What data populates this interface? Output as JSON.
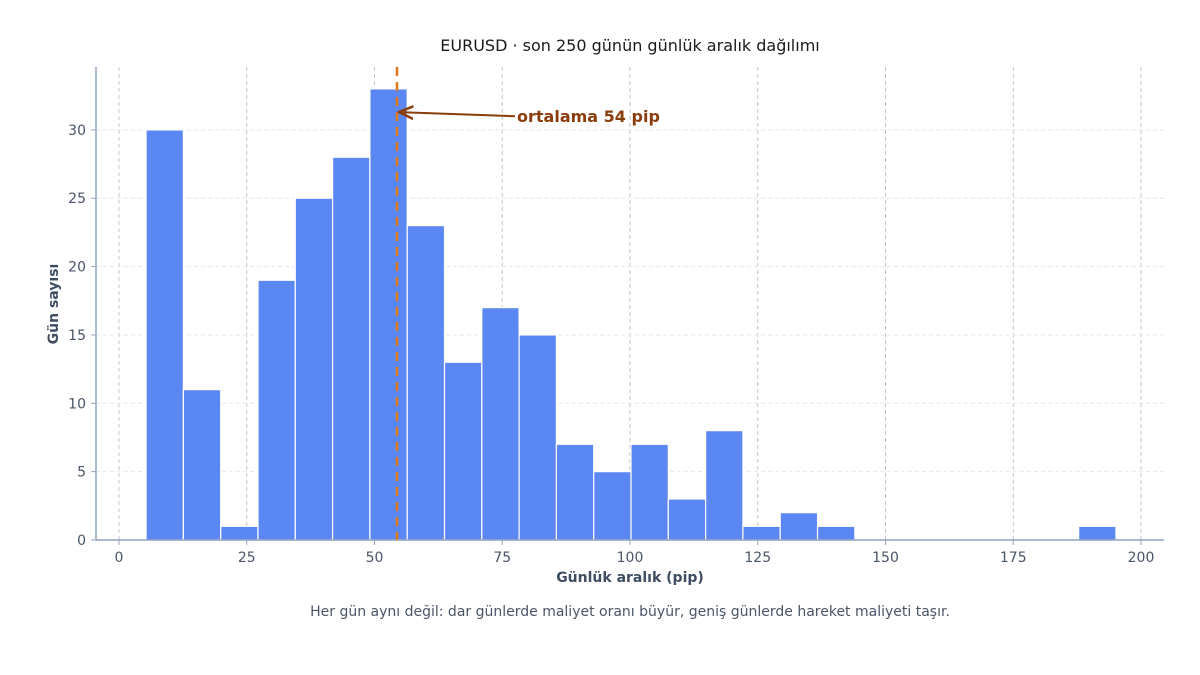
{
  "chart_data": {
    "type": "bar",
    "title": "EURUSD · son 250 günün günlük aralık dağılımı",
    "xlabel": "Günlük aralık (pip)",
    "ylabel": "Gün sayısı",
    "caption": "Her gün aynı değil: dar günlerde maliyet oranı büyür, geniş günlerde hareket maliyeti taşır.",
    "xlim": [
      -4.5,
      204.5
    ],
    "ylim": [
      0,
      34.6
    ],
    "xticks": [
      0,
      25,
      50,
      75,
      100,
      125,
      150,
      175,
      200
    ],
    "yticks": [
      0,
      5,
      10,
      15,
      20,
      25,
      30
    ],
    "bins": [
      {
        "start": 5.3,
        "end": 12.6,
        "value": 30
      },
      {
        "start": 12.6,
        "end": 19.9,
        "value": 11
      },
      {
        "start": 19.9,
        "end": 27.2,
        "value": 1
      },
      {
        "start": 27.2,
        "end": 34.5,
        "value": 19
      },
      {
        "start": 34.5,
        "end": 41.8,
        "value": 25
      },
      {
        "start": 41.8,
        "end": 49.1,
        "value": 28
      },
      {
        "start": 49.1,
        "end": 56.4,
        "value": 33
      },
      {
        "start": 56.4,
        "end": 63.7,
        "value": 23
      },
      {
        "start": 63.7,
        "end": 71.0,
        "value": 13
      },
      {
        "start": 71.0,
        "end": 78.3,
        "value": 17
      },
      {
        "start": 78.3,
        "end": 85.6,
        "value": 15
      },
      {
        "start": 85.6,
        "end": 92.9,
        "value": 7
      },
      {
        "start": 92.9,
        "end": 100.2,
        "value": 5
      },
      {
        "start": 100.2,
        "end": 107.5,
        "value": 7
      },
      {
        "start": 107.5,
        "end": 114.8,
        "value": 3
      },
      {
        "start": 114.8,
        "end": 122.1,
        "value": 8
      },
      {
        "start": 122.1,
        "end": 129.4,
        "value": 1
      },
      {
        "start": 129.4,
        "end": 136.7,
        "value": 2
      },
      {
        "start": 136.7,
        "end": 144.0,
        "value": 1
      },
      {
        "start": 187.8,
        "end": 195.1,
        "value": 1
      }
    ],
    "mean_line": {
      "value": 54.4,
      "label": "ortalama 54 pip",
      "arrow_from": [
        77.5,
        31.0
      ],
      "arrow_to": [
        54.8,
        31.3
      ]
    },
    "grid": true,
    "colors": {
      "bar": "#5b87f2",
      "bar_edge": "#ffffff",
      "mean_line": "#e07b1a",
      "annotation": "#8b3c0b",
      "axis": "#8fa3c0"
    }
  }
}
